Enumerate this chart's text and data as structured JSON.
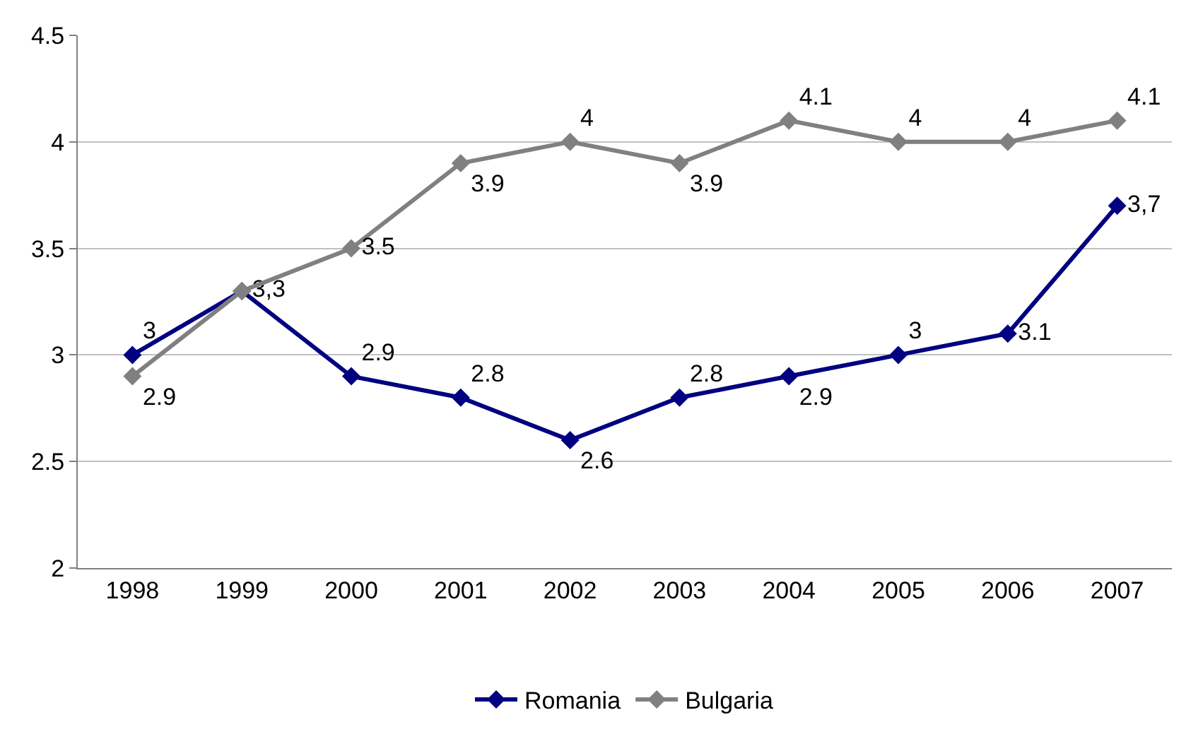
{
  "chart_data": {
    "type": "line",
    "categories": [
      "1998",
      "1999",
      "2000",
      "2001",
      "2002",
      "2003",
      "2004",
      "2005",
      "2006",
      "2007"
    ],
    "series": [
      {
        "name": "Romania",
        "color": "#000080",
        "values": [
          3,
          3.3,
          2.9,
          2.8,
          2.6,
          2.8,
          2.9,
          3,
          3.1,
          3.7
        ],
        "value_labels": [
          "3",
          "3,3",
          "2.9",
          "2.8",
          "2.6",
          "2.8",
          "2.9",
          "3",
          "3.1",
          "3,7"
        ]
      },
      {
        "name": "Bulgaria",
        "color": "#808080",
        "values": [
          2.9,
          3.3,
          3.5,
          3.9,
          4,
          3.9,
          4.1,
          4,
          4,
          4.1
        ],
        "value_labels": [
          "2.9",
          null,
          "3.5",
          "3.9",
          "4",
          "3.9",
          "4.1",
          "4",
          "4",
          "4.1"
        ]
      }
    ],
    "ylim": [
      2,
      4.5
    ],
    "yticks": [
      2,
      2.5,
      3,
      3.5,
      4,
      4.5
    ],
    "grid": "y",
    "legend": "bottom",
    "marker": "diamond",
    "line_style": "solid"
  }
}
